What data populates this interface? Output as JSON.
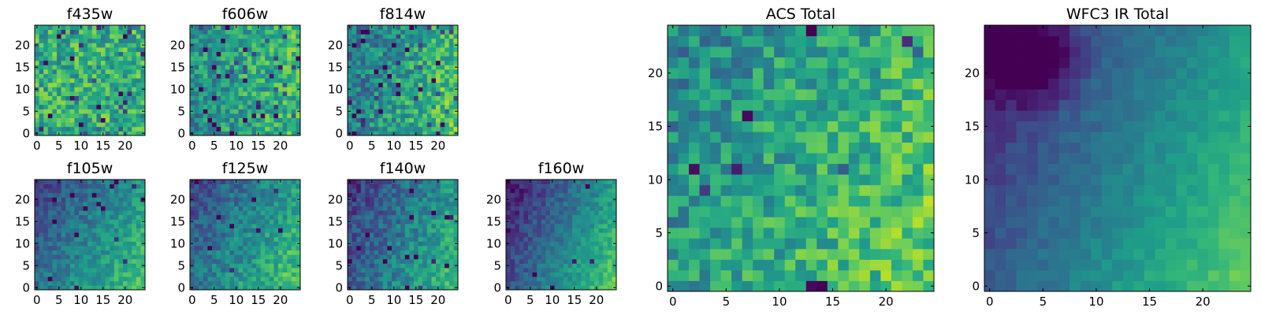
{
  "chart_data": [
    {
      "type": "heatmap",
      "title": "f435w",
      "colormap": "viridis",
      "grid_size": [
        25,
        25
      ],
      "xlim": [
        -0.5,
        24.5
      ],
      "ylim": [
        -0.5,
        24.5
      ],
      "xticks": [
        0,
        5,
        10,
        15,
        20
      ],
      "yticks": [
        0,
        5,
        10,
        15,
        20
      ],
      "value_model": {
        "base": 0.62,
        "gradient": [
          0.0,
          0.0
        ],
        "noise": 0.22,
        "seed": 11,
        "dark_spots": 0.05
      }
    },
    {
      "type": "heatmap",
      "title": "f606w",
      "colormap": "viridis",
      "grid_size": [
        25,
        25
      ],
      "xlim": [
        -0.5,
        24.5
      ],
      "ylim": [
        -0.5,
        24.5
      ],
      "xticks": [
        0,
        5,
        10,
        15,
        20
      ],
      "yticks": [
        0,
        5,
        10,
        15,
        20
      ],
      "value_model": {
        "base": 0.58,
        "gradient": [
          0.18,
          0.02
        ],
        "noise": 0.2,
        "seed": 23,
        "dark_spots": 0.05
      }
    },
    {
      "type": "heatmap",
      "title": "f814w",
      "colormap": "viridis",
      "grid_size": [
        25,
        25
      ],
      "xlim": [
        -0.5,
        24.5
      ],
      "ylim": [
        -0.5,
        24.5
      ],
      "xticks": [
        0,
        5,
        10,
        15,
        20
      ],
      "yticks": [
        0,
        5,
        10,
        15,
        20
      ],
      "value_model": {
        "base": 0.55,
        "gradient": [
          0.3,
          -0.08
        ],
        "noise": 0.2,
        "seed": 37,
        "dark_spots": 0.06
      }
    },
    {
      "type": "heatmap",
      "title": "f105w",
      "colormap": "viridis",
      "grid_size": [
        25,
        25
      ],
      "xlim": [
        -0.5,
        24.5
      ],
      "ylim": [
        -0.5,
        24.5
      ],
      "xticks": [
        0,
        5,
        10,
        15,
        20
      ],
      "yticks": [
        0,
        5,
        10,
        15,
        20
      ],
      "value_model": {
        "base": 0.45,
        "gradient": [
          0.35,
          -0.2
        ],
        "noise": 0.12,
        "seed": 41,
        "dark_spots": 0.02
      }
    },
    {
      "type": "heatmap",
      "title": "f125w",
      "colormap": "viridis",
      "grid_size": [
        25,
        25
      ],
      "xlim": [
        -0.5,
        24.5
      ],
      "ylim": [
        -0.5,
        24.5
      ],
      "xticks": [
        0,
        5,
        10,
        15,
        20
      ],
      "yticks": [
        0,
        5,
        10,
        15,
        20
      ],
      "value_model": {
        "base": 0.47,
        "gradient": [
          0.35,
          -0.18
        ],
        "noise": 0.14,
        "seed": 53,
        "dark_spots": 0.02
      }
    },
    {
      "type": "heatmap",
      "title": "f140w",
      "colormap": "viridis",
      "grid_size": [
        25,
        25
      ],
      "xlim": [
        -0.5,
        24.5
      ],
      "ylim": [
        -0.5,
        24.5
      ],
      "xticks": [
        0,
        5,
        10,
        15,
        20
      ],
      "yticks": [
        0,
        5,
        10,
        15,
        20
      ],
      "value_model": {
        "base": 0.42,
        "gradient": [
          0.38,
          -0.15
        ],
        "noise": 0.14,
        "seed": 67,
        "dark_spots": 0.02
      }
    },
    {
      "type": "heatmap",
      "title": "f160w",
      "colormap": "viridis",
      "grid_size": [
        25,
        25
      ],
      "xlim": [
        -0.5,
        24.5
      ],
      "ylim": [
        -0.5,
        24.5
      ],
      "xticks": [
        0,
        5,
        10,
        15,
        20
      ],
      "yticks": [
        0,
        5,
        10,
        15,
        20
      ],
      "value_model": {
        "base": 0.4,
        "gradient": [
          0.5,
          -0.22
        ],
        "noise": 0.1,
        "seed": 79,
        "dark_spots": 0.01
      }
    },
    {
      "type": "heatmap",
      "title": "ACS Total",
      "colormap": "viridis",
      "grid_size": [
        25,
        25
      ],
      "xlim": [
        -0.5,
        24.5
      ],
      "ylim": [
        -0.5,
        24.5
      ],
      "xticks": [
        0,
        5,
        10,
        15,
        20
      ],
      "yticks": [
        0,
        5,
        10,
        15,
        20
      ],
      "value_model": {
        "base": 0.6,
        "gradient": [
          0.22,
          -0.1
        ],
        "noise": 0.18,
        "seed": 97,
        "dark_spots": 0.025
      }
    },
    {
      "type": "heatmap",
      "title": "WFC3 IR Total",
      "colormap": "viridis",
      "grid_size": [
        25,
        25
      ],
      "xlim": [
        -0.5,
        24.5
      ],
      "ylim": [
        -0.5,
        24.5
      ],
      "xticks": [
        0,
        5,
        10,
        15,
        20
      ],
      "yticks": [
        0,
        5,
        10,
        15,
        20
      ],
      "value_model": {
        "base": 0.42,
        "gradient": [
          0.48,
          -0.22
        ],
        "noise": 0.05,
        "seed": 113,
        "dark_spots": 0.0,
        "dark_blob": {
          "center": [
            4,
            21
          ],
          "radius": 3,
          "depth": 0.35
        }
      }
    }
  ]
}
